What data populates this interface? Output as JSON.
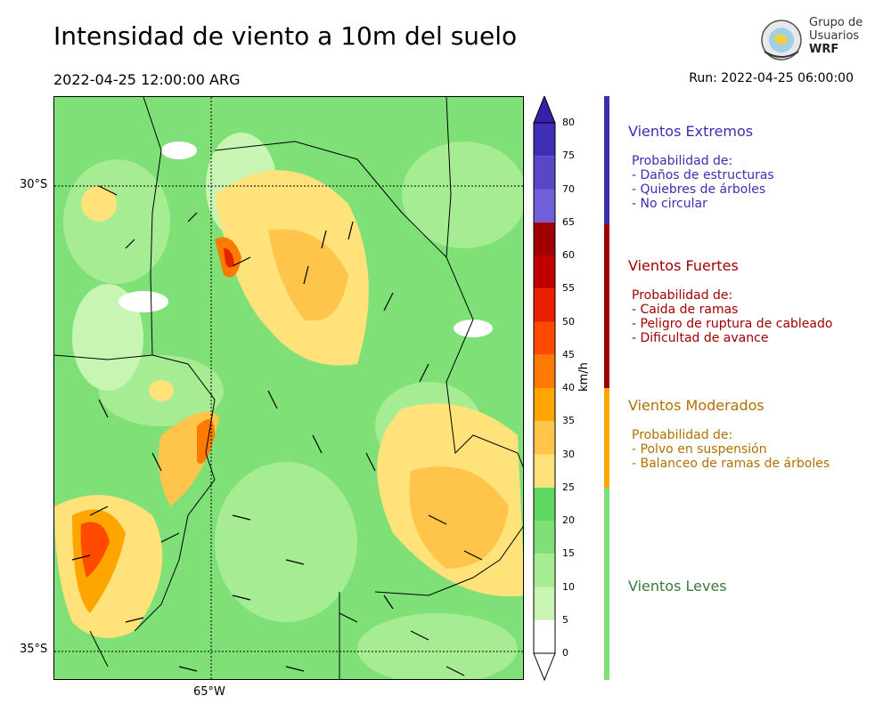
{
  "header": {
    "title": "Intensidad de viento a 10m del suelo",
    "datetime": "2022-04-25 12:00:00 ARG",
    "run": "Run: 2022-04-25 06:00:00"
  },
  "logo": {
    "line1": "Grupo de",
    "line2": "Usuarios",
    "line3": "WRF"
  },
  "map": {
    "lat_labels": [
      "30°S",
      "35°S"
    ],
    "lon_labels": [
      "65°W"
    ]
  },
  "colorbar": {
    "unit": "km/h",
    "ticks": [
      "0",
      "5",
      "10",
      "15",
      "20",
      "25",
      "30",
      "35",
      "40",
      "45",
      "50",
      "55",
      "60",
      "65",
      "70",
      "75",
      "80"
    ],
    "colors": [
      "#ffffff",
      "#c8f5b4",
      "#a6ec93",
      "#7fe077",
      "#5fd85f",
      "#ffe27a",
      "#ffc44a",
      "#ffa500",
      "#ff7a00",
      "#ff4a00",
      "#e82000",
      "#c00000",
      "#a00000",
      "#7060d8",
      "#5848c8",
      "#4030b8",
      "#3a20a8"
    ]
  },
  "categories": [
    {
      "title": "Vientos Extremos",
      "color": "#3a2fb0",
      "desc": [
        "Probabilidad de:",
        "- Daños de estructuras",
        "- Quiebres de árboles",
        "- No circular"
      ]
    },
    {
      "title": "Vientos Fuertes",
      "color": "#a00000",
      "desc": [
        "Probabilidad de:",
        "- Caida de ramas",
        "- Peligro de ruptura de cableado",
        "- Dificultad de avance"
      ]
    },
    {
      "title": "Vientos Moderados",
      "color": "#b07000",
      "desc": [
        "Probabilidad de:",
        "- Polvo en suspensión",
        "- Balanceo de ramas de árboles"
      ]
    },
    {
      "title": "Vientos Leves",
      "color": "#3a7a3a",
      "desc": []
    }
  ]
}
